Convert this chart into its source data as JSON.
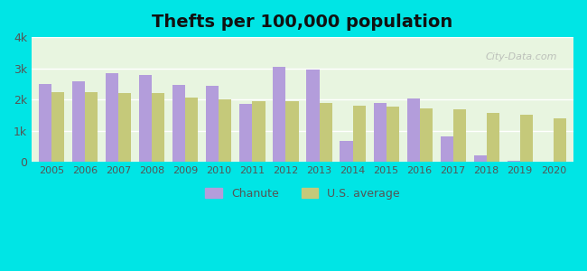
{
  "title": "Thefts per 100,000 population",
  "years": [
    2005,
    2006,
    2007,
    2008,
    2009,
    2010,
    2011,
    2012,
    2013,
    2014,
    2015,
    2016,
    2017,
    2018,
    2019,
    2020
  ],
  "chanute": [
    2500,
    2600,
    2850,
    2800,
    2480,
    2430,
    1850,
    3050,
    2950,
    680,
    1900,
    2050,
    820,
    220,
    50,
    0
  ],
  "us_avg": [
    2250,
    2230,
    2220,
    2220,
    2080,
    2000,
    1960,
    1960,
    1900,
    1820,
    1780,
    1720,
    1680,
    1580,
    1530,
    1390
  ],
  "chanute_color": "#b39ddb",
  "us_avg_color": "#c5c97a",
  "background_color": "#00e5e5",
  "plot_bg_top": "#e8f5e9",
  "plot_bg_bottom": "#f0faf0",
  "ylim": [
    0,
    4000
  ],
  "yticks": [
    0,
    1000,
    2000,
    3000,
    4000
  ],
  "ytick_labels": [
    "0",
    "1k",
    "2k",
    "3k",
    "4k"
  ],
  "bar_width": 0.38,
  "title_fontsize": 14,
  "legend_label_chanute": "Chanute",
  "legend_label_us": "U.S. average",
  "watermark": "City-Data.com"
}
